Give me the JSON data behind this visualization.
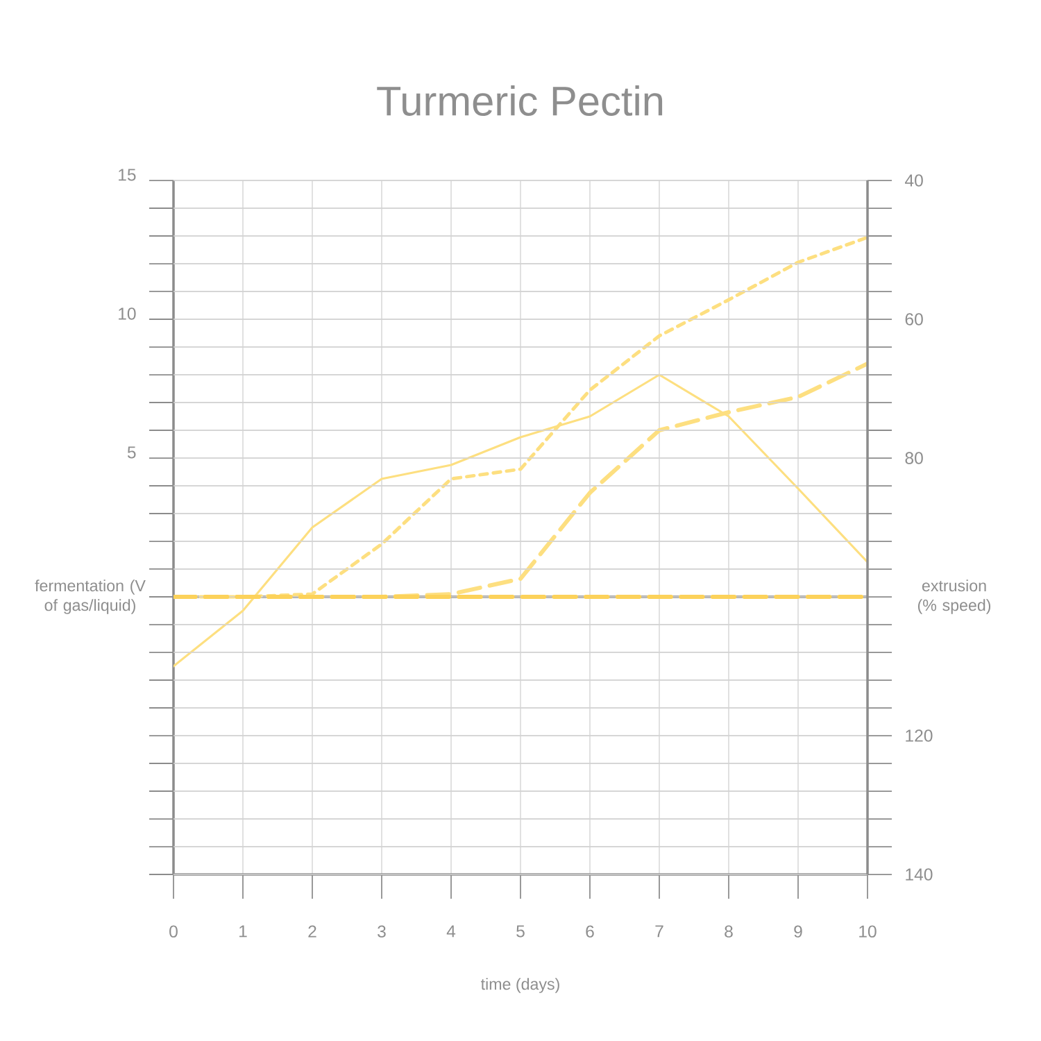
{
  "chart_data": {
    "type": "line",
    "title": "Turmeric Pectin",
    "xlabel": "time (days)",
    "ylabel": "fermentation (V of gas/liquid)",
    "y2label": "extrusion (% speed)",
    "x": [
      0,
      1,
      2,
      3,
      4,
      5,
      6,
      7,
      8,
      9,
      10
    ],
    "series": [
      {
        "color": "#fddf80",
        "line_style": "solid",
        "values": [
          -2.5,
          -0.5,
          2.5,
          4.25,
          4.75,
          5.75,
          6.5,
          8,
          6.5,
          3.9,
          1.25
        ]
      },
      {
        "color": "#fddf80",
        "line_style": "dotted",
        "values": [
          0,
          0,
          0.1,
          1.9,
          4.25,
          4.6,
          7.45,
          9.4,
          10.7,
          12.05,
          12.95
        ]
      },
      {
        "color": "#fddf80",
        "line_style": "dashed",
        "values": [
          0,
          0,
          0,
          0,
          0.1,
          0.65,
          3.75,
          6,
          6.65,
          7.2,
          8.4
        ]
      },
      {
        "color": "#fcd25a",
        "line_style": "dashed",
        "axis": "y2",
        "values": [
          100,
          100,
          100,
          100,
          100,
          100,
          100,
          100,
          100,
          100,
          100
        ]
      }
    ],
    "xlim": [
      0,
      10
    ],
    "xticks": [
      0,
      1,
      2,
      3,
      4,
      5,
      6,
      7,
      8,
      9,
      10
    ],
    "ylim": [
      -10,
      15
    ],
    "yticks": [
      {
        "value": -10,
        "label": null
      },
      {
        "value": -9,
        "label": null
      },
      {
        "value": -8,
        "label": null
      },
      {
        "value": -7,
        "label": null
      },
      {
        "value": -6,
        "label": null
      },
      {
        "value": -5,
        "label": null
      },
      {
        "value": -4,
        "label": null
      },
      {
        "value": -3,
        "label": null
      },
      {
        "value": -2,
        "label": null
      },
      {
        "value": -1,
        "label": null
      },
      {
        "value": 0,
        "label": null
      },
      {
        "value": 1,
        "label": null
      },
      {
        "value": 2,
        "label": null
      },
      {
        "value": 3,
        "label": null
      },
      {
        "value": 4,
        "label": null
      },
      5,
      {
        "value": 6,
        "label": null
      },
      {
        "value": 7,
        "label": null
      },
      {
        "value": 8,
        "label": null
      },
      {
        "value": 9,
        "label": null
      },
      10,
      {
        "value": 11,
        "label": null
      },
      {
        "value": 12,
        "label": null
      },
      {
        "value": 13,
        "label": null
      },
      {
        "value": 14,
        "label": null
      },
      15
    ],
    "y2lim": [
      140,
      40
    ],
    "y2ticks": [
      40,
      {
        "value": 44,
        "label": null
      },
      {
        "value": 48,
        "label": null
      },
      {
        "value": 52,
        "label": null
      },
      {
        "value": 56,
        "label": null
      },
      60,
      {
        "value": 64,
        "label": null
      },
      {
        "value": 68,
        "label": null
      },
      {
        "value": 72,
        "label": null
      },
      {
        "value": 76,
        "label": null
      },
      80,
      {
        "value": 84,
        "label": null
      },
      {
        "value": 88,
        "label": null
      },
      {
        "value": 92,
        "label": null
      },
      {
        "value": 96,
        "label": null
      },
      {
        "value": 100,
        "label": null
      },
      {
        "value": 104,
        "label": null
      },
      {
        "value": 108,
        "label": null
      },
      {
        "value": 112,
        "label": null
      },
      {
        "value": 116,
        "label": null
      },
      120,
      {
        "value": 124,
        "label": null
      },
      {
        "value": 128,
        "label": null
      },
      {
        "value": 132,
        "label": null
      },
      {
        "value": 136,
        "label": null
      },
      140
    ],
    "ref_lines": [
      {
        "axis": "y",
        "value": 0,
        "color": "#8c8c8c"
      }
    ],
    "grid": true
  }
}
